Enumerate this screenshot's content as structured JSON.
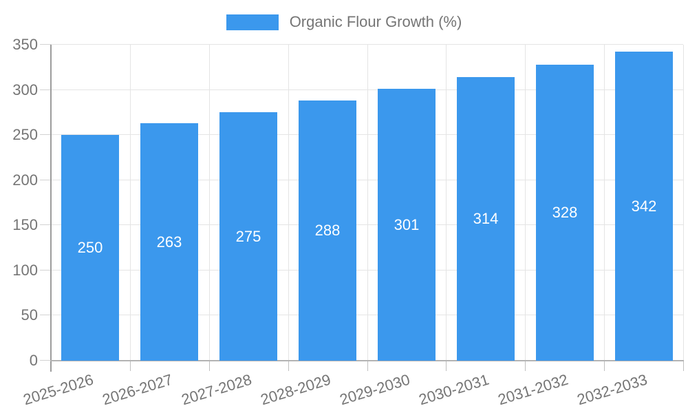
{
  "legend": {
    "label": "Organic Flour Growth (%)"
  },
  "chart_data": {
    "type": "bar",
    "title": "Organic Flour Growth (%)",
    "categories": [
      "2025-2026",
      "2026-2027",
      "2027-2028",
      "2028-2029",
      "2029-2030",
      "2030-2031",
      "2031-2032",
      "2032-2033"
    ],
    "series": [
      {
        "name": "Organic Flour Growth (%)",
        "values": [
          250,
          263,
          275,
          288,
          301,
          314,
          328,
          342
        ]
      }
    ],
    "value_labels": [
      250,
      263,
      275,
      288,
      301,
      314,
      328,
      342
    ],
    "xlabel": "",
    "ylabel": "",
    "ylim": [
      0,
      350
    ],
    "yticks": [
      0,
      50,
      100,
      150,
      200,
      250,
      300,
      350
    ],
    "grid": true,
    "legend_position": "top-center",
    "x_tick_rotation_deg": -17,
    "colors": {
      "bar": "#3b98ed",
      "axis_text": "#757575",
      "value_text": "#ffffff",
      "gridline": "#e4e4e4",
      "y_axis_line": "#9c9c9c",
      "x_axis_line": "#b3b3b3",
      "background": "#ffffff"
    }
  }
}
